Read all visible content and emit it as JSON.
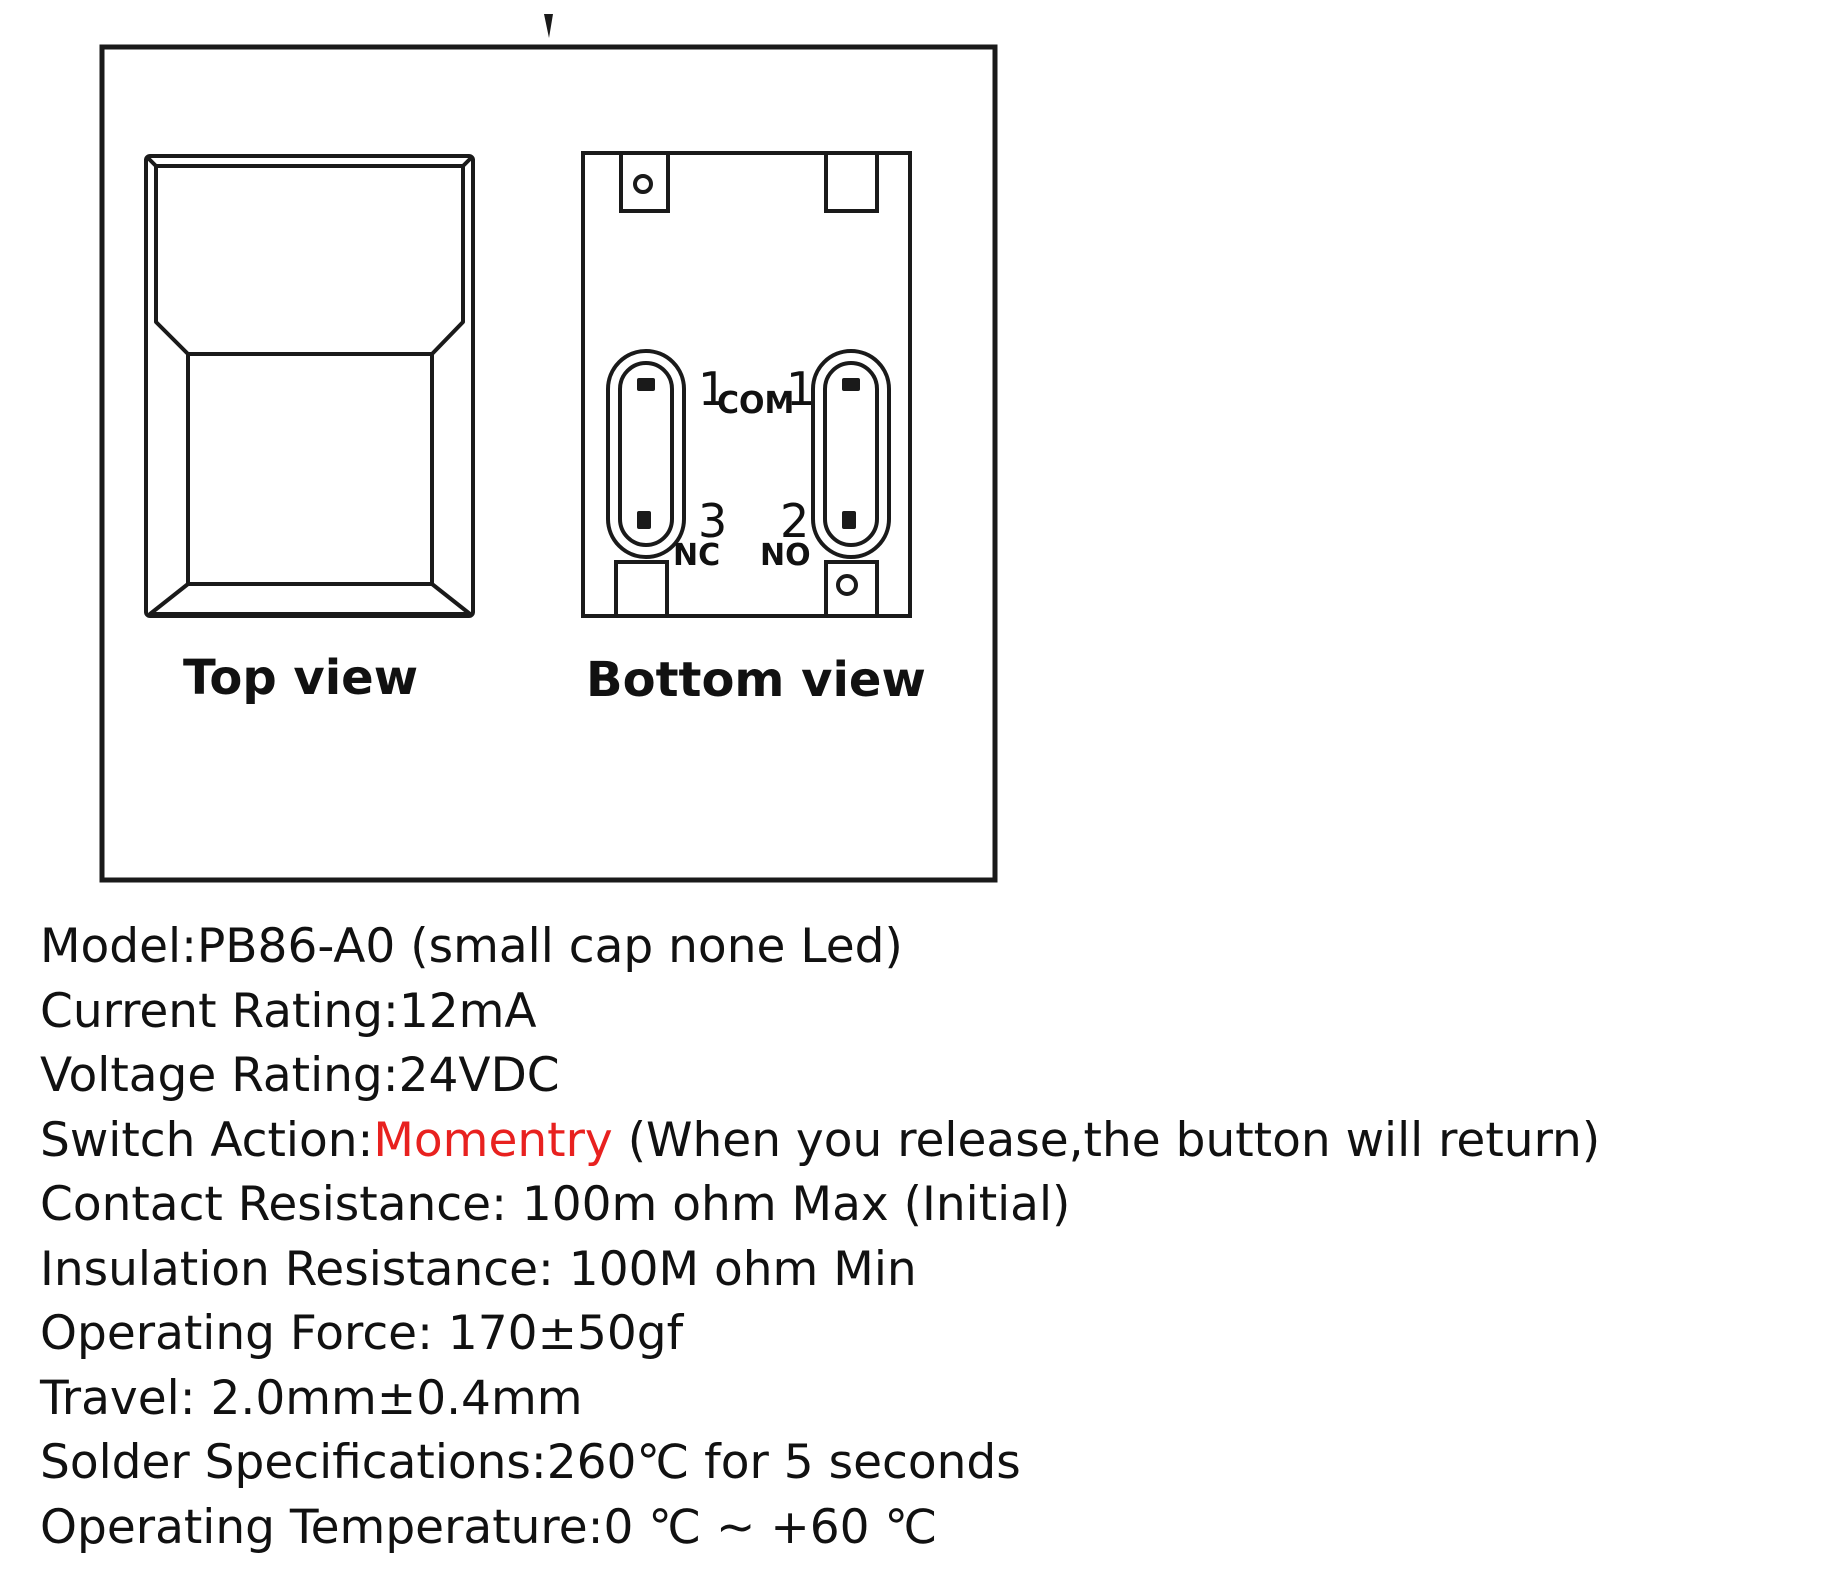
{
  "diagram": {
    "top_view_caption": "Top view",
    "bottom_view_caption": "Bottom view",
    "pins": {
      "com_left_num": "1",
      "com_label": "COM",
      "com_right_num": "1",
      "nc_num": "3",
      "nc_label": "NC",
      "no_num": "2",
      "no_label": "NO"
    }
  },
  "specs": [
    {
      "label": "Model:",
      "value": "PB86-A0 (small cap none Led)"
    },
    {
      "label": "Current Rating:",
      "value": "12mA"
    },
    {
      "label": "Voltage Rating:",
      "value": "24VDC"
    },
    {
      "label": "Switch Action:",
      "highlight": "Momentry",
      "value": " (When you release,the button will return)"
    },
    {
      "label": "Contact Resistance: ",
      "value": "100m ohm Max (Initial)"
    },
    {
      "label": "Insulation Resistance: ",
      "value": "100M ohm Min"
    },
    {
      "label": "Operating Force: ",
      "value": "170±50gf"
    },
    {
      "label": "Travel: ",
      "value": "2.0mm±0.4mm"
    },
    {
      "label": "Solder Specifications:",
      "value": "260℃ for 5 seconds"
    },
    {
      "label": "Operating Temperature:",
      "value": "0 ℃ ~ +60 ℃"
    }
  ],
  "colors": {
    "accent": "#e8211f",
    "text": "#111111",
    "outline": "#1a1a1a"
  }
}
